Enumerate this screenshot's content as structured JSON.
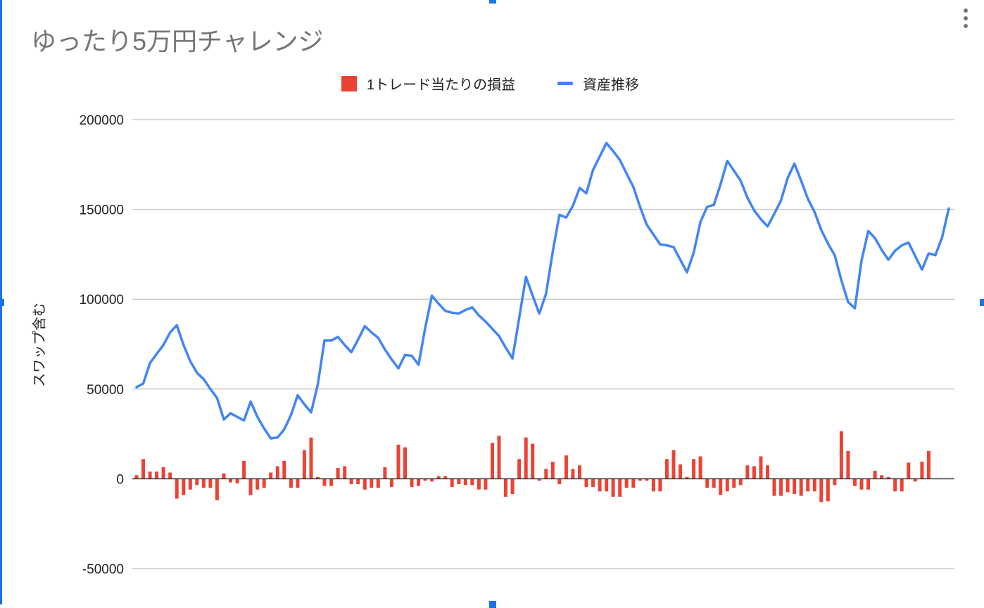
{
  "chart_data": {
    "type": "bar+line",
    "title": "ゆったり5万円チャレンジ",
    "ylabel": "スワップ含む",
    "xlabel": "",
    "ylim": [
      -50000,
      200000
    ],
    "yticks": [
      "200000",
      "150000",
      "100000",
      "50000",
      "0",
      "-50000"
    ],
    "grid": true,
    "legend": "top-center",
    "series": [
      {
        "name": "1トレード当たりの損益",
        "type": "bar",
        "color": "#ea4335",
        "values": [
          2000,
          11000,
          4000,
          4000,
          6500,
          3500,
          -11000,
          -9000,
          -6000,
          -3500,
          -5000,
          -5000,
          -12000,
          3000,
          -2000,
          -2500,
          10000,
          -9000,
          -6000,
          -5000,
          3500,
          7000,
          10000,
          -5000,
          -5000,
          16000,
          23000,
          1000,
          -4000,
          -4000,
          6000,
          7000,
          -3000,
          -3000,
          -6000,
          -5000,
          -5000,
          6500,
          -4500,
          19000,
          17500,
          -4500,
          -4000,
          -1000,
          -1500,
          1500,
          1500,
          -4500,
          -3000,
          -3500,
          -3500,
          -6000,
          -6000,
          20000,
          24000,
          -10000,
          -8500,
          11000,
          23000,
          19500,
          -1000,
          5500,
          9500,
          -3000,
          13000,
          5500,
          7500,
          -4500,
          -4500,
          -7000,
          -7000,
          -10000,
          -10000,
          -5000,
          -5000,
          -1000,
          -1000,
          -7000,
          -7000,
          11000,
          16000,
          8000,
          1000,
          11000,
          12500,
          -5000,
          -5000,
          -9000,
          -7000,
          -5000,
          -3500,
          7500,
          7000,
          12500,
          7500,
          -9500,
          -9500,
          -7500,
          -8500,
          -9500,
          -7000,
          -7000,
          -13000,
          -12500,
          -3500,
          26500,
          15500,
          -4000,
          -6000,
          -6000,
          4500,
          2000,
          1000,
          -7000,
          -7000,
          9000,
          -1500,
          9500,
          15500
        ]
      },
      {
        "name": "資産推移",
        "type": "line",
        "color": "#4285f4",
        "values": [
          51000,
          53000,
          64500,
          69500,
          74500,
          81500,
          85500,
          74500,
          65500,
          59000,
          55500,
          50000,
          45000,
          33000,
          36500,
          34500,
          32500,
          43000,
          34500,
          28000,
          22500,
          23000,
          27500,
          35500,
          46500,
          41500,
          37000,
          52500,
          77000,
          77000,
          79000,
          74500,
          70500,
          77500,
          85000,
          81500,
          78500,
          72000,
          66500,
          61500,
          69000,
          68500,
          63500,
          84000,
          102000,
          97500,
          93500,
          92500,
          92000,
          94000,
          95500,
          91000,
          87500,
          83500,
          79500,
          73000,
          67000,
          89500,
          112500,
          102000,
          92000,
          103000,
          126500,
          147000,
          145500,
          152000,
          162000,
          159000,
          172000,
          179500,
          187000,
          182500,
          177500,
          170000,
          162500,
          151500,
          141500,
          136000,
          130500,
          130000,
          129000,
          122000,
          115000,
          126000,
          143000,
          151500,
          152500,
          164000,
          177000,
          171500,
          166000,
          156500,
          149500,
          144500,
          140500,
          147500,
          155000,
          167500,
          175500,
          166000,
          156000,
          148500,
          138500,
          131000,
          124500,
          110500,
          98500,
          95000,
          121500,
          138000,
          134000,
          127500,
          122000,
          127000,
          130000,
          131500,
          124000,
          116500,
          125500,
          124500,
          134500,
          150500
        ]
      }
    ]
  }
}
